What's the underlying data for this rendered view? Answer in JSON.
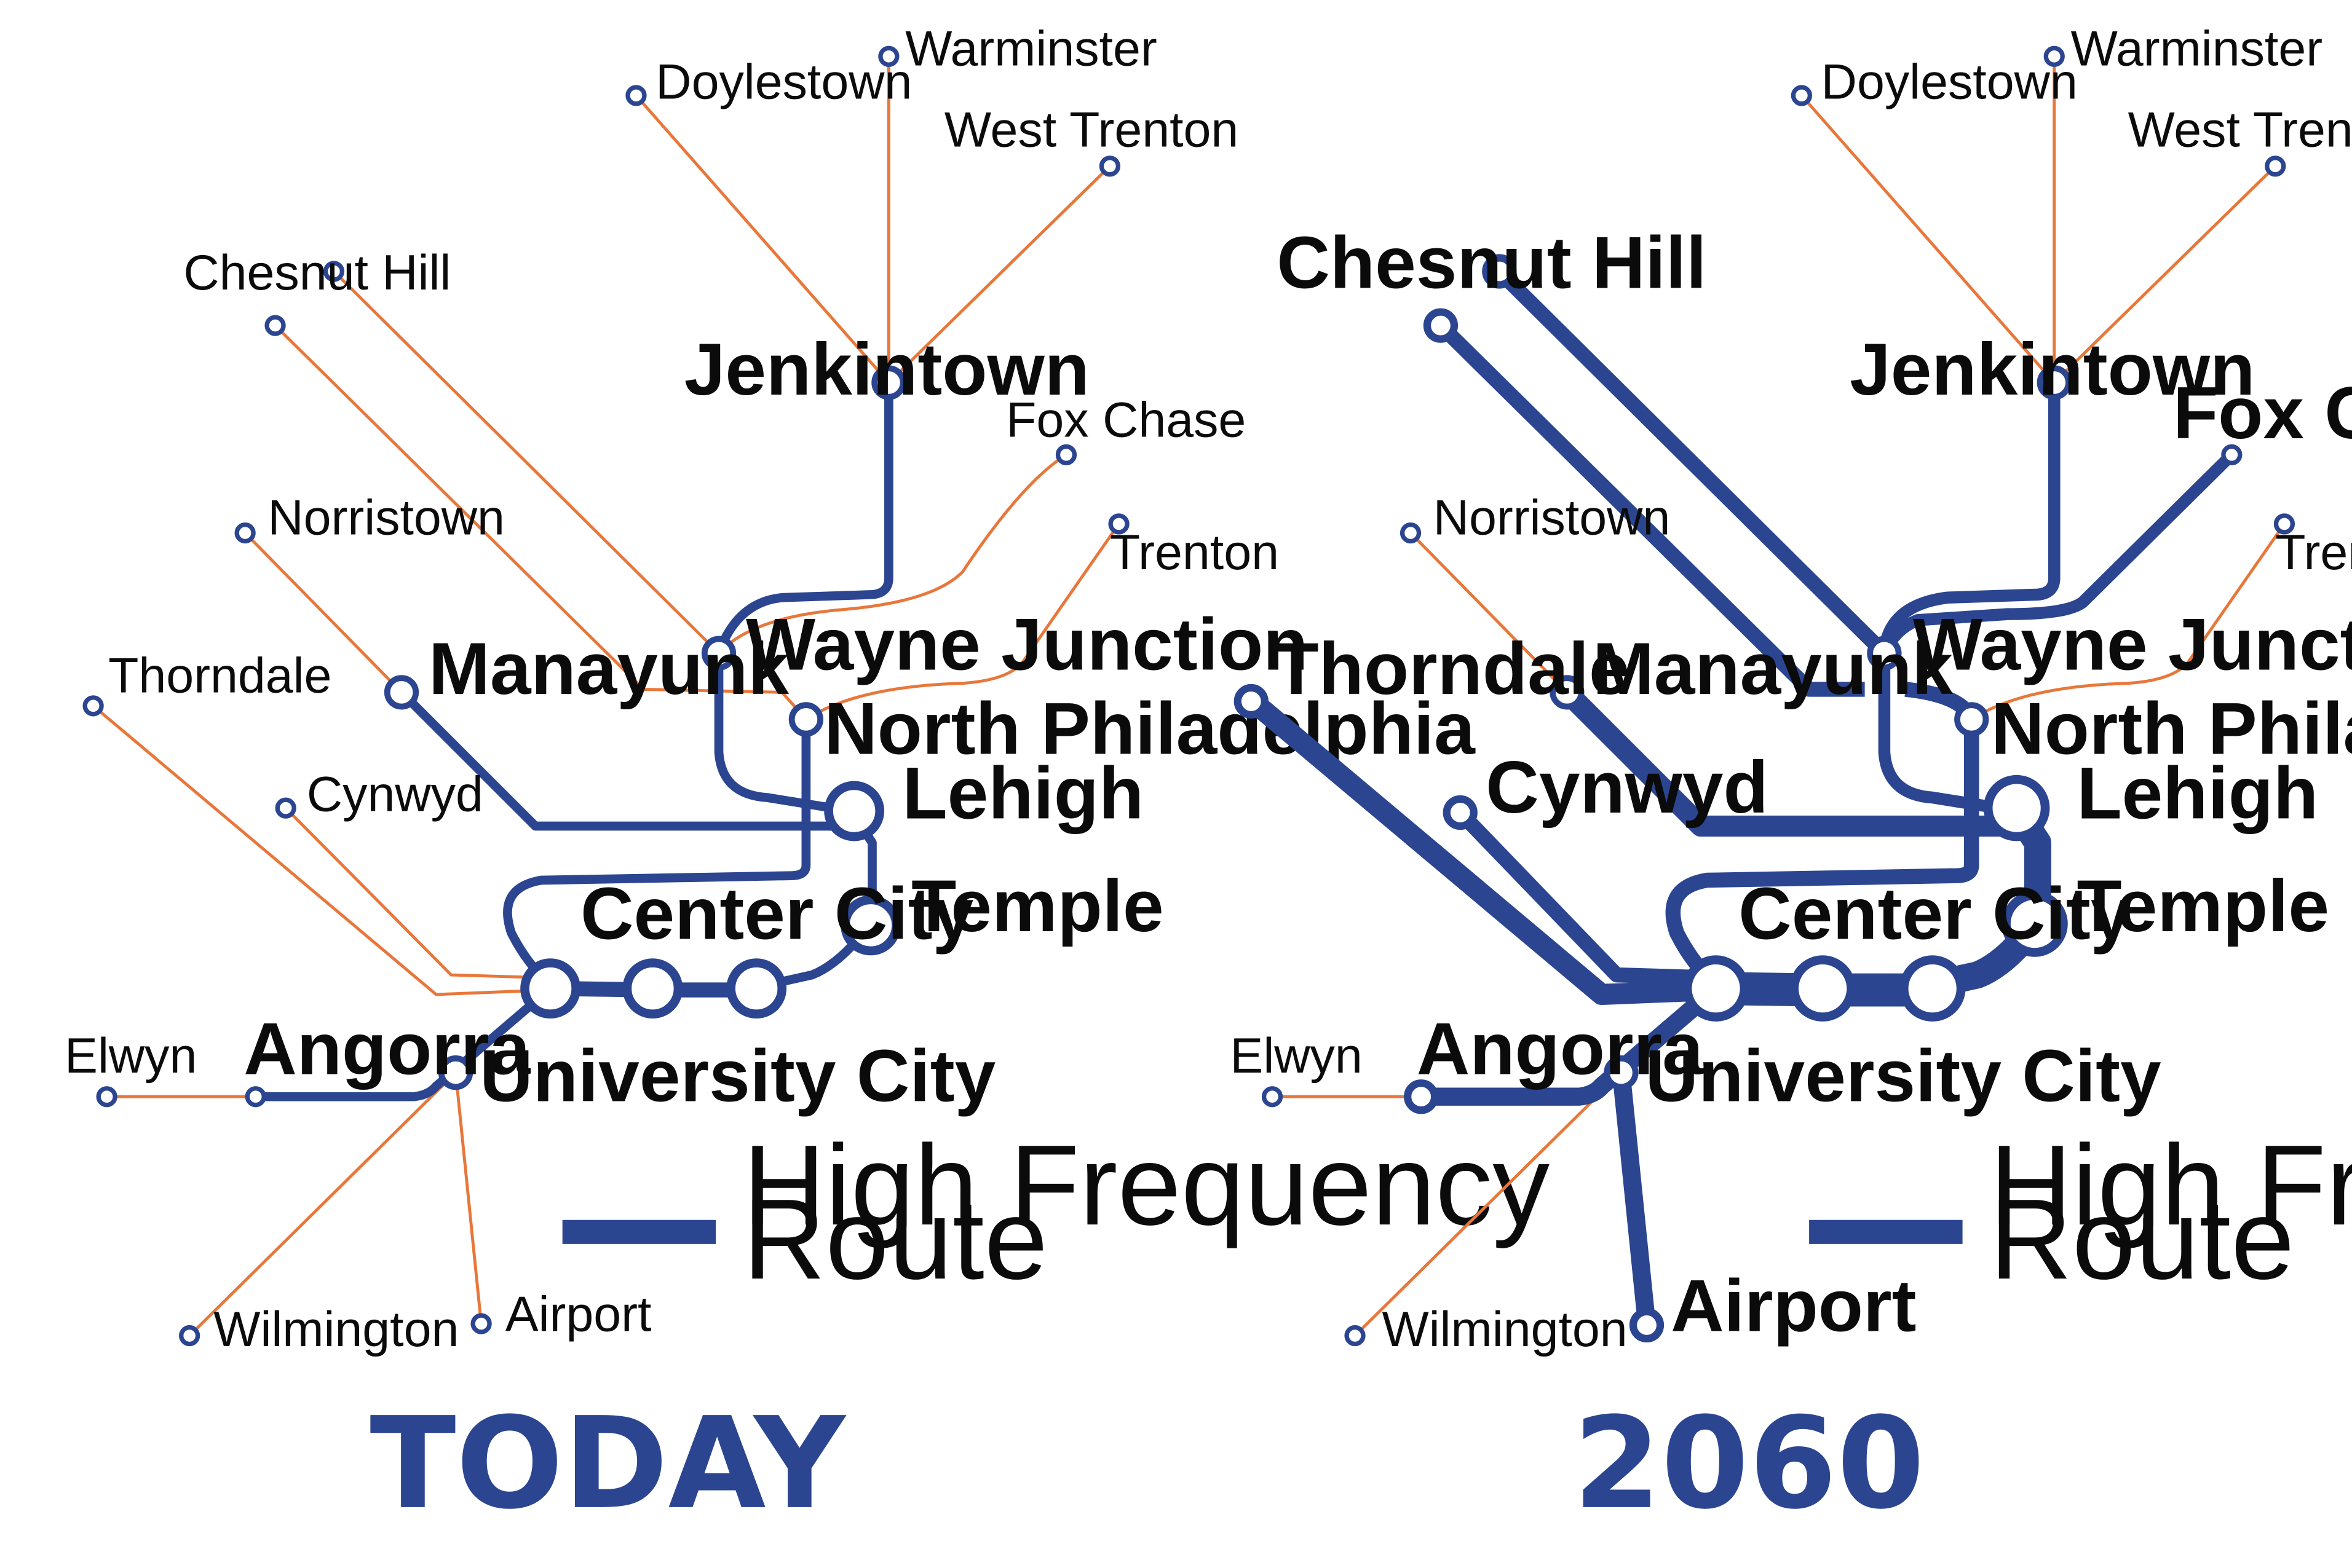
{
  "colors": {
    "high_frequency": "#2b4590",
    "regional": "#e8773a",
    "station_fill": "#ffffff",
    "text": "#0b0b0b"
  },
  "legend": {
    "label_line1": "High Frequency",
    "label_line2": "Route"
  },
  "maps": {
    "today": {
      "title": "TODAY",
      "labels": {
        "warminster": "Warminster",
        "doylestown": "Doylestown",
        "west_trenton": "West Trenton",
        "chesnut_hill": "Chesnut Hill",
        "jenkintown": "Jenkintown",
        "fox_chase": "Fox Chase",
        "norristown": "Norristown",
        "trenton": "Trenton",
        "thorndale": "Thorndale",
        "manayunk": "Manayunk",
        "wayne_junction": "Wayne Junction",
        "north_philadelphia": "North Philadelphia",
        "cynwyd": "Cynwyd",
        "lehigh": "Lehigh",
        "temple": "Temple",
        "center_city": "Center City",
        "elwyn": "Elwyn",
        "angorra": "Angorra",
        "university_city": "University City",
        "wilmington": "Wilmington",
        "airport": "Airport"
      },
      "high_frequency_routes": [
        "Jenkintown",
        "Manayunk",
        "Center City",
        "Angorra"
      ]
    },
    "future": {
      "title": "2060",
      "labels": {
        "warminster": "Warminster",
        "doylestown": "Doylestown",
        "west_trenton": "West Trenton",
        "chesnut_hill": "Chesnut Hill",
        "jenkintown": "Jenkintown",
        "fox_chase": "Fox Chase",
        "norristown": "Norristown",
        "trenton": "Trenton",
        "thorndale": "Thorndale",
        "manayunk": "Manayunk",
        "wayne_junction": "Wayne Junction",
        "north_philadelphia": "North Philadelphia",
        "cynwyd": "Cynwyd",
        "lehigh": "Lehigh",
        "temple": "Temple",
        "center_city": "Center City",
        "elwyn": "Elwyn",
        "angorra": "Angorra",
        "university_city": "University City",
        "wilmington": "Wilmington",
        "airport": "Airport"
      },
      "high_frequency_routes": [
        "Chesnut Hill",
        "Jenkintown",
        "Fox Chase",
        "Thorndale",
        "Cynwyd",
        "Manayunk",
        "Center City",
        "Angorra",
        "Airport"
      ]
    }
  }
}
